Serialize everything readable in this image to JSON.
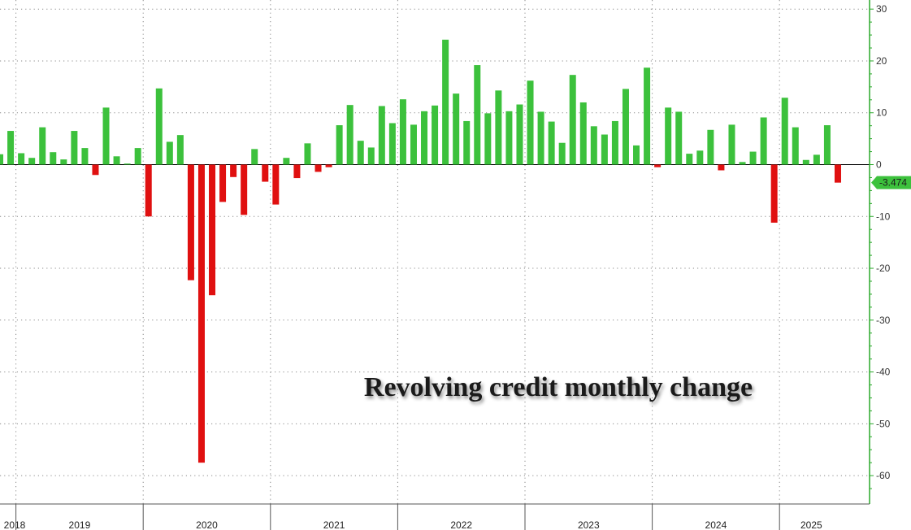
{
  "chart_data": {
    "type": "bar",
    "title": "Revolving credit monthly change",
    "xlabel": "",
    "ylabel": "",
    "ylim": [
      -65,
      30
    ],
    "y_ticks": [
      30,
      20,
      10,
      0,
      -10,
      -20,
      -30,
      -40,
      -50,
      -60
    ],
    "grid": true,
    "colors": {
      "positive": "#3cc13c",
      "negative": "#e01010",
      "axis": "#2aa82a",
      "callout": "#3cc13c"
    },
    "years": [
      {
        "label": "2018",
        "start": 0,
        "end": 1
      },
      {
        "label": "2019",
        "start": 2,
        "end": 13
      },
      {
        "label": "2020",
        "start": 14,
        "end": 25
      },
      {
        "label": "2021",
        "start": 26,
        "end": 37
      },
      {
        "label": "2022",
        "start": 38,
        "end": 49
      },
      {
        "label": "2023",
        "start": 50,
        "end": 61
      },
      {
        "label": "2024",
        "start": 62,
        "end": 73
      },
      {
        "label": "2025",
        "start": 74,
        "end": 79
      }
    ],
    "values": [
      2.0,
      6.5,
      2.2,
      1.3,
      7.2,
      2.4,
      1.0,
      6.5,
      3.2,
      -2.0,
      11.0,
      1.6,
      0.2,
      3.2,
      -10.0,
      14.7,
      4.4,
      5.7,
      -22.3,
      -57.5,
      -25.2,
      -7.2,
      -2.4,
      -9.7,
      3.0,
      -3.3,
      -7.7,
      1.3,
      -2.6,
      4.1,
      -1.4,
      -0.5,
      7.6,
      11.5,
      4.6,
      3.3,
      11.3,
      8.0,
      12.6,
      7.7,
      10.3,
      11.4,
      24.1,
      13.7,
      8.4,
      19.2,
      9.9,
      14.3,
      10.3,
      11.6,
      16.2,
      10.2,
      8.3,
      4.2,
      17.3,
      12.0,
      7.4,
      5.8,
      8.4,
      14.6,
      3.7,
      18.7,
      -0.5,
      11.0,
      10.2,
      2.1,
      2.7,
      6.7,
      -1.1,
      7.7,
      0.5,
      2.5,
      9.1,
      -11.2,
      12.9,
      7.2,
      0.9,
      1.9,
      7.6,
      -3.474
    ],
    "last_value_label": "-3.474"
  }
}
